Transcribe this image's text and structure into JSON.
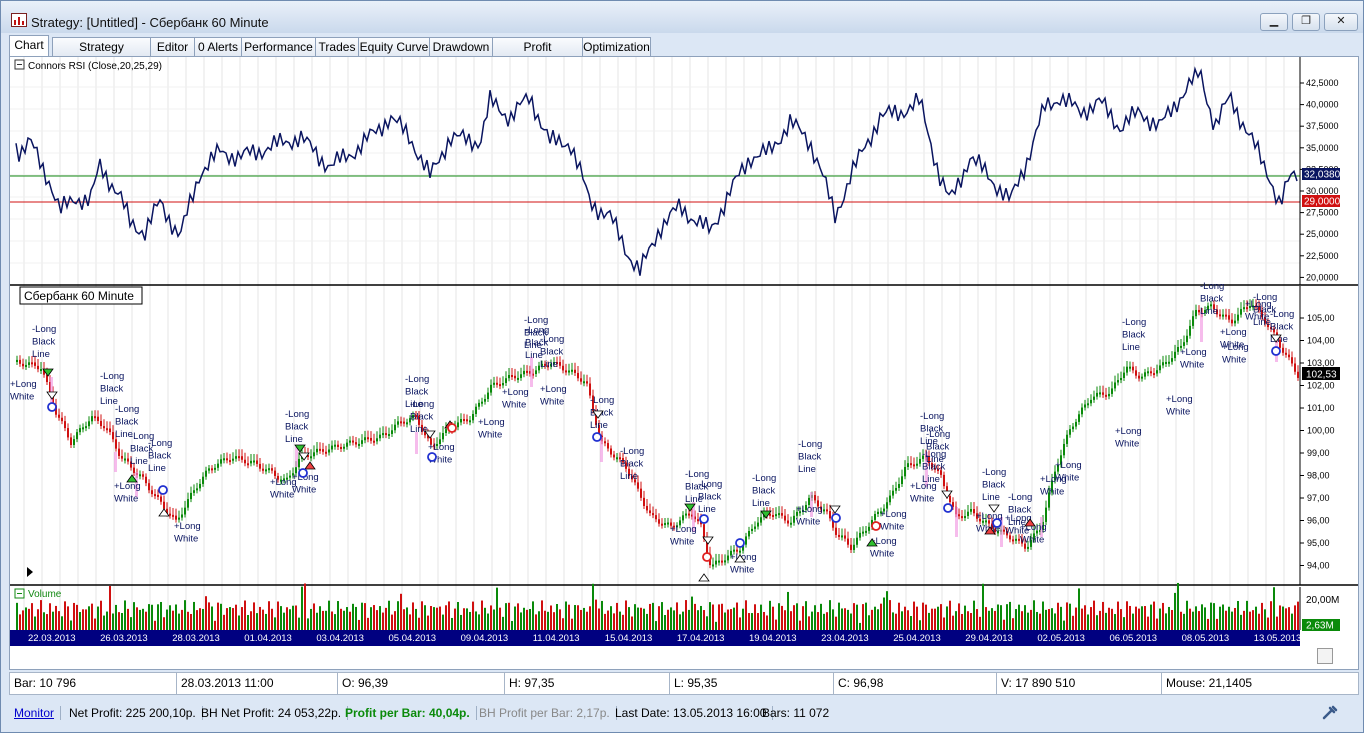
{
  "window": {
    "title": "Strategy: [Untitled] - Сбербанк 60 Minute",
    "buttons": [
      "minimize-icon",
      "restore-icon",
      "close-icon"
    ]
  },
  "tabs": [
    "Chart",
    "Strategy Summary",
    "Editor",
    "0 Alerts",
    "Performance",
    "Trades",
    "Equity Curve",
    "Drawdown",
    "Profit Distribution",
    "Optimization"
  ],
  "indicator_pane": {
    "label": "Connors RSI (Close,20,25,29)",
    "scale": [
      "42,5000",
      "40,0000",
      "37,5000",
      "35,0000",
      "32,5000",
      "30,0000",
      "27,5000",
      "25,0000",
      "22,5000",
      "20,0000"
    ],
    "current_badge": "32,0380",
    "level_badge": "29,0000",
    "colors": {
      "line": "#0a1560",
      "upper": "#118811",
      "lower": "#d01010"
    }
  },
  "price_pane": {
    "label": "Сбербанк 60 Minute",
    "scale": [
      "105,00",
      "104,00",
      "103,00",
      "102,00",
      "101,00",
      "100,00",
      "99,00",
      "98,00",
      "97,00",
      "96,00",
      "95,00",
      "94,00"
    ],
    "last_price_badge": "102,53"
  },
  "volume_pane": {
    "label": "Volume",
    "scale": [
      "20,00M"
    ],
    "badge": "2,63M"
  },
  "date_axis": [
    "22.03.2013",
    "26.03.2013",
    "28.03.2013",
    "01.04.2013",
    "03.04.2013",
    "05.04.2013",
    "09.04.2013",
    "11.04.2013",
    "15.04.2013",
    "17.04.2013",
    "19.04.2013",
    "23.04.2013",
    "25.04.2013",
    "29.04.2013",
    "02.05.2013",
    "06.05.2013",
    "08.05.2013",
    "13.05.2013"
  ],
  "signal_labels": [
    {
      "text": [
        "-Long",
        "Black",
        "Line"
      ]
    },
    {
      "text": [
        "+Long",
        "White"
      ]
    }
  ],
  "status": {
    "bar": "Bar: 10 796",
    "date": "28.03.2013 11:00",
    "open": "O: 96,39",
    "high": "H: 97,35",
    "low": "L: 95,35",
    "close": "C: 96,98",
    "volume": "V: 17 890 510",
    "mouse": "Mouse: 21,1405"
  },
  "bottom": {
    "monitor": "Monitor",
    "net_profit": "Net Profit: 225 200,10р.",
    "bh_net_profit": "BH Net Profit: 24 053,22р.",
    "profit_per_bar": "Profit per Bar: 40,04р.",
    "bh_profit_per_bar": "BH Profit per Bar: 2,17р.",
    "last_date": "Last Date: 13.05.2013 16:00",
    "bars": "Bars: 11 072"
  }
}
